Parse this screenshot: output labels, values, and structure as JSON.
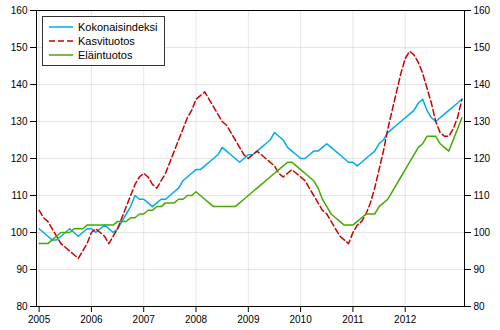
{
  "chart_data": {
    "type": "line",
    "x": [
      2005,
      2005.0833333333333,
      2005.1666666666667,
      2005.25,
      2005.3333333333333,
      2005.4166666666667,
      2005.5,
      2005.5833333333333,
      2005.6666666666667,
      2005.75,
      2005.8333333333333,
      2005.9166666666667,
      2006,
      2006.0833333333333,
      2006.1666666666667,
      2006.25,
      2006.3333333333333,
      2006.4166666666667,
      2006.5,
      2006.5833333333333,
      2006.6666666666667,
      2006.75,
      2006.8333333333333,
      2006.9166666666667,
      2007,
      2007.0833333333333,
      2007.1666666666667,
      2007.25,
      2007.3333333333333,
      2007.4166666666667,
      2007.5,
      2007.5833333333333,
      2007.6666666666667,
      2007.75,
      2007.8333333333333,
      2007.9166666666667,
      2008,
      2008.0833333333333,
      2008.1666666666667,
      2008.25,
      2008.3333333333333,
      2008.4166666666667,
      2008.5,
      2008.5833333333333,
      2008.6666666666667,
      2008.75,
      2008.8333333333333,
      2008.9166666666667,
      2009,
      2009.0833333333333,
      2009.1666666666667,
      2009.25,
      2009.3333333333333,
      2009.4166666666667,
      2009.5,
      2009.5833333333333,
      2009.6666666666667,
      2009.75,
      2009.8333333333333,
      2009.9166666666667,
      2010,
      2010.0833333333333,
      2010.1666666666667,
      2010.25,
      2010.3333333333333,
      2010.4166666666667,
      2010.5,
      2010.5833333333333,
      2010.6666666666667,
      2010.75,
      2010.8333333333333,
      2010.9166666666667,
      2011,
      2011.0833333333333,
      2011.1666666666667,
      2011.25,
      2011.3333333333333,
      2011.4166666666667,
      2011.5,
      2011.5833333333333,
      2011.6666666666667,
      2011.75,
      2011.8333333333333,
      2011.9166666666667,
      2012,
      2012.0833333333333,
      2012.1666666666667,
      2012.25,
      2012.3333333333333,
      2012.4166666666667,
      2012.5,
      2012.5833333333333,
      2012.6666666666667,
      2012.75,
      2012.8333333333333,
      2012.9166666666667,
      2013,
      2013.0833333333333
    ],
    "xlim": [
      2004.95,
      2013.1333333333332
    ],
    "xticks": [
      2005,
      2006,
      2007,
      2008,
      2009,
      2010,
      2011,
      2012
    ],
    "ylim": [
      80,
      160
    ],
    "yticks": [
      80,
      90,
      100,
      110,
      120,
      130,
      140,
      150,
      160
    ],
    "y2lim": [
      80,
      160
    ],
    "y2ticks": [
      80,
      90,
      100,
      110,
      120,
      130,
      140,
      150,
      160
    ],
    "grid": true,
    "legend": "top-left",
    "series": [
      {
        "name": "Kokonaisindeksi",
        "color": "#00aaee",
        "line_style": "solid",
        "values": [
          101,
          100,
          99,
          98,
          98,
          99,
          100,
          101,
          100,
          99,
          100,
          101,
          101,
          100,
          101,
          102,
          101,
          100,
          101,
          103,
          105,
          107,
          110,
          109,
          109,
          108,
          107,
          108,
          109,
          109,
          110,
          111,
          112,
          114,
          115,
          116,
          117,
          117,
          118,
          119,
          120,
          121,
          123,
          122,
          121,
          120,
          119,
          120,
          121,
          121,
          122,
          123,
          124,
          125,
          127,
          126,
          125,
          123,
          122,
          121,
          120,
          120,
          121,
          122,
          122,
          123,
          124,
          123,
          122,
          121,
          120,
          119,
          119,
          118,
          119,
          120,
          121,
          122,
          124,
          125,
          127,
          128,
          129,
          130,
          131,
          132,
          133,
          135,
          136,
          133,
          131,
          130,
          131,
          132,
          133,
          134,
          135,
          136
        ]
      },
      {
        "name": "Kasvituotos",
        "color": "#cc0000",
        "line_style": "dashed",
        "values": [
          106,
          104,
          103,
          101,
          99,
          97,
          96,
          95,
          94,
          93,
          95,
          97,
          100,
          101,
          100,
          99,
          97,
          99,
          101,
          104,
          107,
          110,
          113,
          115,
          116,
          115,
          113,
          112,
          114,
          116,
          119,
          122,
          125,
          128,
          131,
          133,
          136,
          137,
          138,
          136,
          134,
          132,
          130,
          129,
          127,
          125,
          123,
          121,
          120,
          121,
          122,
          121,
          120,
          119,
          118,
          116,
          115,
          116,
          117,
          116,
          115,
          114,
          112,
          110,
          108,
          106,
          105,
          103,
          101,
          99,
          98,
          97,
          100,
          102,
          103,
          105,
          108,
          112,
          117,
          122,
          128,
          133,
          138,
          143,
          147,
          149,
          148,
          146,
          143,
          139,
          135,
          130,
          127,
          126,
          126,
          128,
          131,
          136
        ]
      },
      {
        "name": "Eläintuotos",
        "color": "#44aa00",
        "line_style": "solid",
        "values": [
          97,
          97,
          97,
          98,
          99,
          100,
          100,
          100,
          101,
          101,
          101,
          102,
          102,
          102,
          102,
          102,
          102,
          102,
          103,
          103,
          103,
          104,
          104,
          105,
          105,
          106,
          106,
          107,
          107,
          108,
          108,
          108,
          109,
          109,
          110,
          110,
          111,
          110,
          109,
          108,
          107,
          107,
          107,
          107,
          107,
          107,
          108,
          109,
          110,
          111,
          112,
          113,
          114,
          115,
          116,
          117,
          118,
          119,
          119,
          118,
          117,
          116,
          115,
          114,
          112,
          109,
          107,
          105,
          104,
          103,
          102,
          102,
          102,
          103,
          104,
          105,
          105,
          105,
          107,
          108,
          109,
          111,
          113,
          115,
          117,
          119,
          121,
          123,
          124,
          126,
          126,
          126,
          124,
          123,
          122,
          125,
          128,
          131
        ]
      }
    ]
  }
}
